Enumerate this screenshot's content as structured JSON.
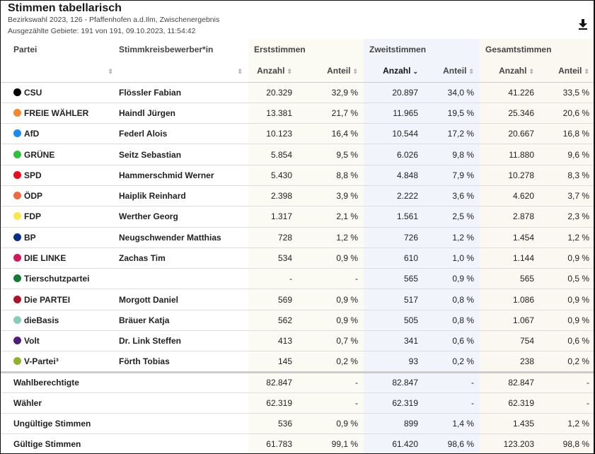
{
  "title": "Stimmen tabellarisch",
  "subtitle": "Bezirkswahl 2023, 126 - Pfaffenhofen a.d.Ilm, Zwischenergebnis",
  "status": "Ausgezählte Gebiete: 191 von 191, 09.10.2023, 11:54:42",
  "download_icon": "download-icon",
  "headers": {
    "partei": "Partei",
    "bewerber": "Stimmkreisbewerber*in",
    "erst": "Erststimmen",
    "zweit": "Zweitstimmen",
    "gesamt": "Gesamtstimmen",
    "anzahl": "Anzahl",
    "anteil": "Anteil",
    "sort_icon": "⇕",
    "sorted_icon": "⌄"
  },
  "sorted_column": "Zweitstimmen Anzahl (descending)",
  "rows": [
    {
      "party": "CSU",
      "color": "#000000",
      "cand": "Flössler Fabian",
      "ea": "20.329",
      "ep": "32,9 %",
      "za": "20.897",
      "zp": "34,0 %",
      "ga": "41.226",
      "gp": "33,5 %"
    },
    {
      "party": "FREIE WÄHLER",
      "color": "#f7862e",
      "cand": "Haindl Jürgen",
      "ea": "13.381",
      "ep": "21,7 %",
      "za": "11.965",
      "zp": "19,5 %",
      "ga": "25.346",
      "gp": "20,6 %"
    },
    {
      "party": "AfD",
      "color": "#1a8cf0",
      "cand": "Federl Alois",
      "ea": "10.123",
      "ep": "16,4 %",
      "za": "10.544",
      "zp": "17,2 %",
      "ga": "20.667",
      "gp": "16,8 %"
    },
    {
      "party": "GRÜNE",
      "color": "#2ec23c",
      "cand": "Seitz Sebastian",
      "ea": "5.854",
      "ep": "9,5 %",
      "za": "6.026",
      "zp": "9,8 %",
      "ga": "11.880",
      "gp": "9,6 %"
    },
    {
      "party": "SPD",
      "color": "#ee0a1e",
      "cand": "Hammerschmid Werner",
      "ea": "5.430",
      "ep": "8,8 %",
      "za": "4.848",
      "zp": "7,9 %",
      "ga": "10.278",
      "gp": "8,3 %"
    },
    {
      "party": "ÖDP",
      "color": "#ee6a42",
      "cand": "Haiplik Reinhard",
      "ea": "2.398",
      "ep": "3,9 %",
      "za": "2.222",
      "zp": "3,6 %",
      "ga": "4.620",
      "gp": "3,7 %"
    },
    {
      "party": "FDP",
      "color": "#f8e94a",
      "cand": "Werther Georg",
      "ea": "1.317",
      "ep": "2,1 %",
      "za": "1.561",
      "zp": "2,5 %",
      "ga": "2.878",
      "gp": "2,3 %"
    },
    {
      "party": "BP",
      "color": "#0c2e86",
      "cand": "Neugschwender Matthias",
      "ea": "728",
      "ep": "1,2 %",
      "za": "726",
      "zp": "1,2 %",
      "ga": "1.454",
      "gp": "1,2 %"
    },
    {
      "party": "DIE LINKE",
      "color": "#d2185a",
      "cand": "Zachas Tim",
      "ea": "534",
      "ep": "0,9 %",
      "za": "610",
      "zp": "1,0 %",
      "ga": "1.144",
      "gp": "0,9 %"
    },
    {
      "party": "Tierschutzpartei",
      "color": "#157a35",
      "cand": "",
      "ea": "-",
      "ep": "-",
      "za": "565",
      "zp": "0,9 %",
      "ga": "565",
      "gp": "0,5 %"
    },
    {
      "party": "Die PARTEI",
      "color": "#a8162a",
      "cand": "Morgott Daniel",
      "ea": "569",
      "ep": "0,9 %",
      "za": "517",
      "zp": "0,8 %",
      "ga": "1.086",
      "gp": "0,9 %"
    },
    {
      "party": "dieBasis",
      "color": "#85cdb8",
      "cand": "Bräuer Katja",
      "ea": "562",
      "ep": "0,9 %",
      "za": "505",
      "zp": "0,8 %",
      "ga": "1.067",
      "gp": "0,9 %"
    },
    {
      "party": "Volt",
      "color": "#4c1f78",
      "cand": "Dr. Link Steffen",
      "ea": "413",
      "ep": "0,7 %",
      "za": "341",
      "zp": "0,6 %",
      "ga": "754",
      "gp": "0,6 %"
    },
    {
      "party": "V-Partei³",
      "color": "#8fb12e",
      "cand": "Förth Tobias",
      "ea": "145",
      "ep": "0,2 %",
      "za": "93",
      "zp": "0,2 %",
      "ga": "238",
      "gp": "0,2 %"
    }
  ],
  "summary": [
    {
      "label": "Wahlberechtigte",
      "ea": "82.847",
      "ep": "-",
      "za": "82.847",
      "zp": "-",
      "ga": "82.847",
      "gp": "-"
    },
    {
      "label": "Wähler",
      "ea": "62.319",
      "ep": "-",
      "za": "62.319",
      "zp": "-",
      "ga": "62.319",
      "gp": "-"
    },
    {
      "label": "Ungültige Stimmen",
      "ea": "536",
      "ep": "0,9 %",
      "za": "899",
      "zp": "1,4 %",
      "ga": "1.435",
      "gp": "1,2 %"
    },
    {
      "label": "Gültige Stimmen",
      "ea": "61.783",
      "ep": "99,1 %",
      "za": "61.420",
      "zp": "98,6 %",
      "ga": "123.203",
      "gp": "98,8 %"
    }
  ]
}
